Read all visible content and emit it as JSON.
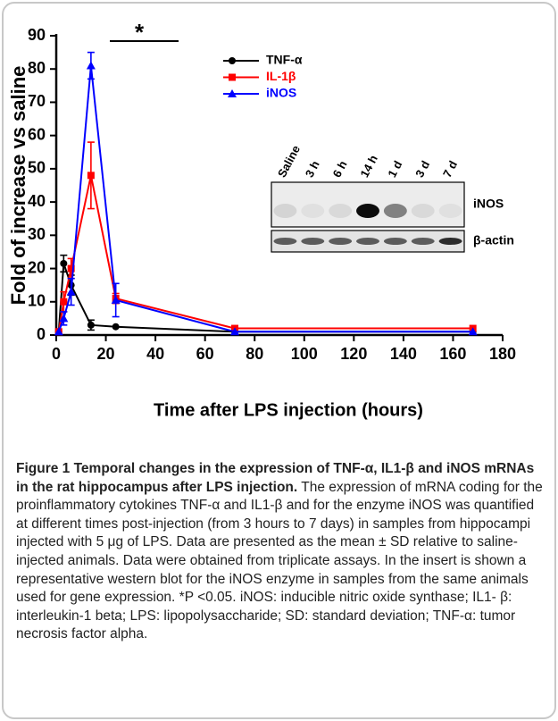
{
  "chart_data": {
    "type": "line",
    "x": [
      1,
      3,
      6,
      14,
      24,
      72,
      168
    ],
    "series": [
      {
        "name": "TNF-α",
        "color": "#000000",
        "marker": "circle",
        "values": [
          1,
          21.5,
          15,
          3,
          2.5,
          1,
          1
        ],
        "errors": [
          null,
          2.5,
          3,
          1.5,
          null,
          null,
          null
        ]
      },
      {
        "name": "IL-1β",
        "color": "#ff0000",
        "marker": "square",
        "values": [
          1,
          10,
          20,
          48,
          11,
          2,
          2
        ],
        "errors": [
          null,
          3,
          3,
          10,
          1.5,
          null,
          null
        ]
      },
      {
        "name": "iNOS",
        "color": "#0000ff",
        "marker": "triangle",
        "values": [
          1,
          5,
          13,
          81,
          10.5,
          1,
          1
        ],
        "errors": [
          null,
          2,
          4,
          4,
          5,
          null,
          null
        ]
      }
    ],
    "xlim": [
      0,
      180
    ],
    "xticks": [
      0,
      20,
      40,
      60,
      80,
      100,
      120,
      140,
      160,
      180
    ],
    "ylim": [
      0,
      90
    ],
    "yticks": [
      0,
      10,
      20,
      30,
      40,
      50,
      60,
      70,
      80,
      90
    ],
    "x_label": "Time after LPS injection (hours)",
    "y_label": "Fold of increase vs saline",
    "annotation": "*",
    "legend": "top"
  },
  "blot": {
    "lanes": [
      "Saline",
      "3 h",
      "6 h",
      "14 h",
      "1 d",
      "3 d",
      "7 d"
    ],
    "rows": [
      "iNOS",
      "β-actin"
    ]
  },
  "caption": {
    "title": "Figure 1 Temporal changes in the expression of TNF-α, IL1-β and iNOS mRNAs in the rat hippocampus after LPS injection.",
    "text": "The expression of mRNA coding for the proinflammatory cytokines TNF-α and IL1-β and for the enzyme iNOS was quantified at different times post-injection (from 3 hours to 7 days) in samples from hippocampi injected with 5 μg of LPS. Data are presented as the mean ± SD relative to saline-injected animals. Data were obtained from triplicate assays. In the insert is shown a representative western blot for the iNOS enzyme in samples from the same animals used for gene expression. *P <0.05. iNOS: inducible nitric oxide synthase; IL1- β: interleukin-1 beta; LPS: lipopolysaccharide; SD: standard deviation; TNF-α: tumor necrosis factor alpha."
  }
}
